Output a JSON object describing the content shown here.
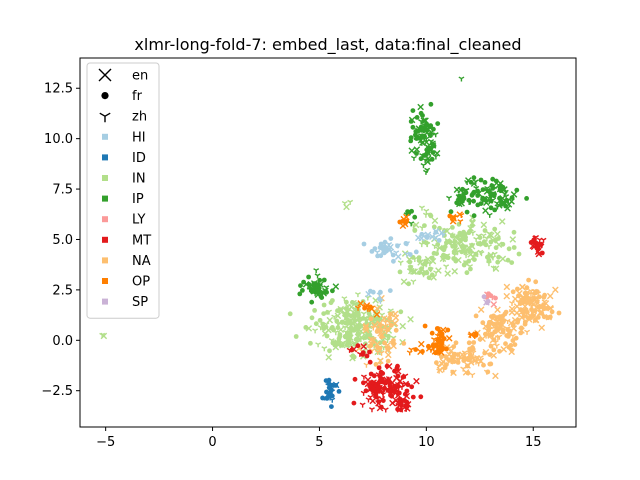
{
  "chart_data": {
    "type": "scatter",
    "title": "xlmr-long-fold-7: embed_last, data:final_cleaned",
    "xlabel": "",
    "ylabel": "",
    "xlim": [
      -6.2,
      17.0
    ],
    "ylim": [
      -4.3,
      14.0
    ],
    "x_ticks": [
      {
        "value": -5,
        "label": "−5"
      },
      {
        "value": 0,
        "label": "0"
      },
      {
        "value": 5,
        "label": "5"
      },
      {
        "value": 10,
        "label": "10"
      },
      {
        "value": 15,
        "label": "15"
      }
    ],
    "y_ticks": [
      {
        "value": -2.5,
        "label": "−2.5"
      },
      {
        "value": 0.0,
        "label": "0.0"
      },
      {
        "value": 2.5,
        "label": "2.5"
      },
      {
        "value": 5.0,
        "label": "5.0"
      },
      {
        "value": 7.5,
        "label": "7.5"
      },
      {
        "value": 10.0,
        "label": "10.0"
      },
      {
        "value": 12.5,
        "label": "12.5"
      }
    ],
    "grid": false,
    "legend_position": "upper-left",
    "marker_legend": [
      {
        "label": "en",
        "marker": "x"
      },
      {
        "label": "fr",
        "marker": "o"
      },
      {
        "label": "zh",
        "marker": "tri_down"
      }
    ],
    "class_legend": [
      {
        "label": "HI",
        "color": "#a6cee3"
      },
      {
        "label": "ID",
        "color": "#1f78b4"
      },
      {
        "label": "IN",
        "color": "#b2df8a"
      },
      {
        "label": "IP",
        "color": "#33a02c"
      },
      {
        "label": "LY",
        "color": "#fb9a99"
      },
      {
        "label": "MT",
        "color": "#e31a1c"
      },
      {
        "label": "NA",
        "color": "#fdbf6f"
      },
      {
        "label": "OP",
        "color": "#ff7f00"
      },
      {
        "label": "SP",
        "color": "#cab2d6"
      }
    ],
    "series": [
      {
        "name": "IN",
        "color": "#b2df8a",
        "clusters": [
          {
            "cx": 6.8,
            "cy": 0.6,
            "sx": 1.0,
            "sy": 0.7,
            "n": 240
          },
          {
            "cx": 11.8,
            "cy": 4.6,
            "sx": 1.1,
            "sy": 0.6,
            "n": 150
          },
          {
            "cx": 9.8,
            "cy": 3.6,
            "sx": 0.5,
            "sy": 0.4,
            "n": 40
          },
          {
            "cx": 9.9,
            "cy": 6.0,
            "sx": 0.4,
            "sy": 0.3,
            "n": 12
          },
          {
            "cx": 6.3,
            "cy": 6.7,
            "sx": 0.1,
            "sy": 0.1,
            "n": 3
          },
          {
            "cx": -5.1,
            "cy": 0.3,
            "sx": 0.05,
            "sy": 0.05,
            "n": 2
          }
        ]
      },
      {
        "name": "IP",
        "color": "#33a02c",
        "clusters": [
          {
            "cx": 9.9,
            "cy": 10.1,
            "sx": 0.3,
            "sy": 0.7,
            "n": 90
          },
          {
            "cx": 13.0,
            "cy": 7.2,
            "sx": 0.7,
            "sy": 0.4,
            "n": 90
          },
          {
            "cx": 11.7,
            "cy": 6.9,
            "sx": 0.3,
            "sy": 0.3,
            "n": 20
          },
          {
            "cx": 4.8,
            "cy": 2.6,
            "sx": 0.35,
            "sy": 0.3,
            "n": 50
          },
          {
            "cx": 9.3,
            "cy": 6.4,
            "sx": 0.1,
            "sy": 0.3,
            "n": 6
          },
          {
            "cx": 11.6,
            "cy": 13.0,
            "sx": 0.02,
            "sy": 0.02,
            "n": 1
          }
        ]
      },
      {
        "name": "NA",
        "color": "#fdbf6f",
        "clusters": [
          {
            "cx": 15.0,
            "cy": 1.8,
            "sx": 0.5,
            "sy": 0.5,
            "n": 110
          },
          {
            "cx": 13.4,
            "cy": 0.4,
            "sx": 0.6,
            "sy": 0.6,
            "n": 90
          },
          {
            "cx": 11.8,
            "cy": -0.9,
            "sx": 0.7,
            "sy": 0.4,
            "n": 80
          },
          {
            "cx": 8.0,
            "cy": 0.1,
            "sx": 0.5,
            "sy": 0.7,
            "n": 60
          }
        ]
      },
      {
        "name": "MT",
        "color": "#e31a1c",
        "clusters": [
          {
            "cx": 8.1,
            "cy": -2.3,
            "sx": 0.6,
            "sy": 0.5,
            "n": 120
          },
          {
            "cx": 8.9,
            "cy": -3.1,
            "sx": 0.2,
            "sy": 0.2,
            "n": 25
          },
          {
            "cx": 15.2,
            "cy": 4.7,
            "sx": 0.15,
            "sy": 0.25,
            "n": 25
          },
          {
            "cx": 7.0,
            "cy": -0.6,
            "sx": 0.4,
            "sy": 0.2,
            "n": 10
          }
        ]
      },
      {
        "name": "OP",
        "color": "#ff7f00",
        "clusters": [
          {
            "cx": 10.6,
            "cy": 0.1,
            "sx": 0.3,
            "sy": 0.4,
            "n": 30
          },
          {
            "cx": 10.2,
            "cy": -0.4,
            "sx": 0.5,
            "sy": 0.15,
            "n": 20
          },
          {
            "cx": 8.9,
            "cy": 6.0,
            "sx": 0.15,
            "sy": 0.15,
            "n": 8
          },
          {
            "cx": 11.3,
            "cy": 6.1,
            "sx": 0.15,
            "sy": 0.15,
            "n": 8
          },
          {
            "cx": 7.4,
            "cy": 1.6,
            "sx": 0.3,
            "sy": 0.2,
            "n": 10
          },
          {
            "cx": 12.3,
            "cy": 0.2,
            "sx": 0.1,
            "sy": 0.1,
            "n": 5
          }
        ]
      },
      {
        "name": "HI",
        "color": "#a6cee3",
        "clusters": [
          {
            "cx": 8.2,
            "cy": 4.5,
            "sx": 0.6,
            "sy": 0.25,
            "n": 35
          },
          {
            "cx": 10.2,
            "cy": 5.3,
            "sx": 0.3,
            "sy": 0.2,
            "n": 15
          },
          {
            "cx": 7.6,
            "cy": 2.3,
            "sx": 0.3,
            "sy": 0.15,
            "n": 8
          }
        ]
      },
      {
        "name": "ID",
        "color": "#1f78b4",
        "clusters": [
          {
            "cx": 5.5,
            "cy": -2.5,
            "sx": 0.15,
            "sy": 0.3,
            "n": 25
          }
        ]
      },
      {
        "name": "LY",
        "color": "#fb9a99",
        "clusters": [
          {
            "cx": 12.9,
            "cy": 2.1,
            "sx": 0.15,
            "sy": 0.15,
            "n": 8
          }
        ]
      },
      {
        "name": "SP",
        "color": "#cab2d6",
        "clusters": [
          {
            "cx": 12.8,
            "cy": 1.9,
            "sx": 0.1,
            "sy": 0.1,
            "n": 4
          }
        ]
      }
    ]
  }
}
